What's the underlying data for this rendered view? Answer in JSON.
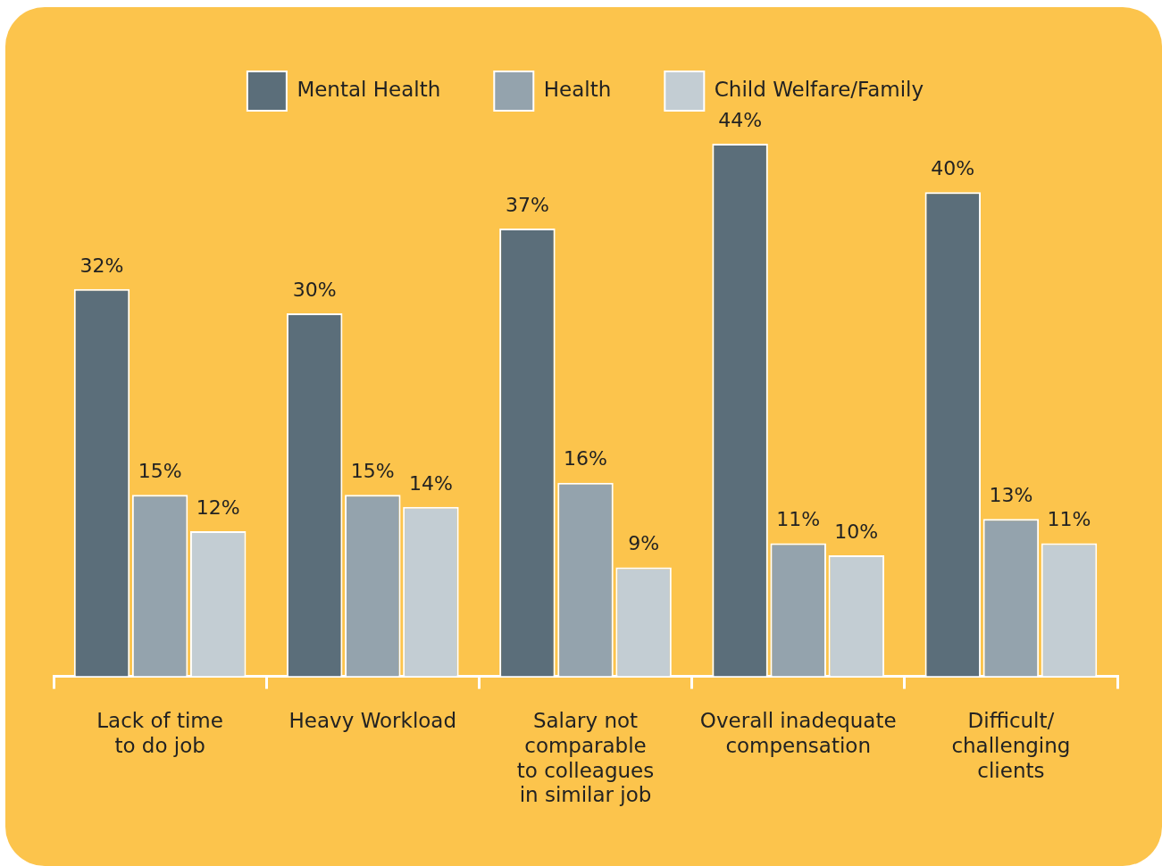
{
  "chart_data": {
    "type": "bar",
    "categories": [
      "Lack of time\nto do job",
      "Heavy Workload",
      "Salary not\ncomparable\nto colleagues\nin similar job",
      "Overall inadequate\ncompensation",
      "Difficult/\nchallenging\nclients"
    ],
    "series": [
      {
        "name": "Mental Health",
        "color": "#5b6e7a",
        "values": [
          32,
          30,
          37,
          44,
          40
        ],
        "value_labels": [
          "32%",
          "30%",
          "37%",
          "44%",
          "40%"
        ]
      },
      {
        "name": "Health",
        "color": "#94a3ad",
        "values": [
          15,
          15,
          16,
          11,
          13
        ],
        "value_labels": [
          "15%",
          "15%",
          "16%",
          "11%",
          "13%"
        ]
      },
      {
        "name": "Child Welfare/Family",
        "color": "#c3cdd3",
        "values": [
          12,
          14,
          9,
          10,
          11
        ],
        "value_labels": [
          "12%",
          "14%",
          "9%",
          "10%",
          "11%"
        ]
      }
    ],
    "legend": "top",
    "grid": false
  }
}
